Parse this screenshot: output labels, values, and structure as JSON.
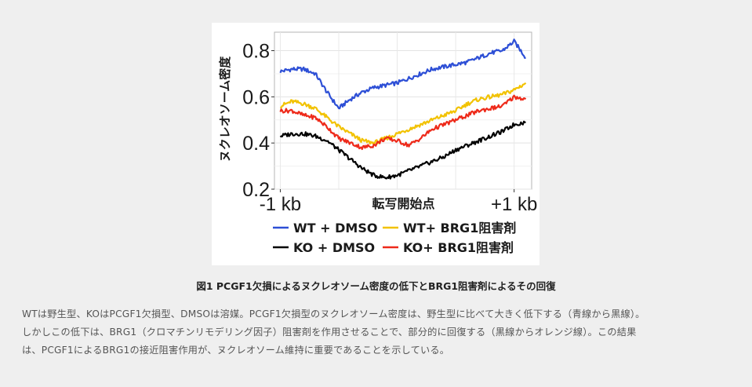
{
  "figure": {
    "caption_title": "図1 PCGF1欠損によるヌクレオソーム密度の低下とBRG1阻害剤によるその回復",
    "caption_body_lines": [
      "WTは野生型、KOはPCGF1欠損型、DMSOは溶媒。PCGF1欠損型のヌクレオソーム密度は、野生型に比べて大きく低下する（青線から黒線）。",
      "しかしこの低下は、BRG1（クロマチンリモデリング因子）阻害剤を作用させることで、部分的に回復する（黒線からオレンジ線）。この結果",
      "は、PCGF1によるBRG1の接近阻害作用が、ヌクレオソーム維持に重要であることを示している。"
    ]
  },
  "chart_data": {
    "type": "line",
    "title": "",
    "xlabel": "転写開始点",
    "ylabel": "ヌクレオソーム密度",
    "x_tick_labels": [
      "-1 kb",
      "+1 kb"
    ],
    "x_ticks": [
      -1,
      1
    ],
    "xlim": [
      -1.05,
      1.15
    ],
    "ylim": [
      0.2,
      0.88
    ],
    "y_ticks": [
      0.2,
      0.4,
      0.6,
      0.8
    ],
    "y_tick_labels": [
      "0.2",
      "0.4",
      "0.6",
      "0.8"
    ],
    "grid": true,
    "legend_position": "bottom",
    "x": [
      -1.0,
      -0.9,
      -0.8,
      -0.7,
      -0.6,
      -0.5,
      -0.4,
      -0.3,
      -0.2,
      -0.1,
      0.0,
      0.1,
      0.2,
      0.3,
      0.4,
      0.5,
      0.6,
      0.7,
      0.8,
      0.9,
      1.0,
      1.1
    ],
    "series": [
      {
        "name": "WT + DMSO",
        "color": "#2d4fd6",
        "values": [
          0.71,
          0.72,
          0.72,
          0.7,
          0.62,
          0.55,
          0.59,
          0.62,
          0.64,
          0.65,
          0.66,
          0.68,
          0.7,
          0.72,
          0.73,
          0.74,
          0.75,
          0.77,
          0.79,
          0.8,
          0.84,
          0.77
        ]
      },
      {
        "name": "WT+ BRG1阻害剤",
        "color": "#f2c200",
        "values": [
          0.56,
          0.58,
          0.57,
          0.55,
          0.51,
          0.47,
          0.44,
          0.41,
          0.4,
          0.42,
          0.44,
          0.46,
          0.48,
          0.5,
          0.52,
          0.54,
          0.57,
          0.59,
          0.6,
          0.61,
          0.63,
          0.66
        ]
      },
      {
        "name": "KO + DMSO",
        "color": "#000000",
        "values": [
          0.43,
          0.44,
          0.44,
          0.43,
          0.41,
          0.37,
          0.33,
          0.29,
          0.26,
          0.25,
          0.26,
          0.28,
          0.3,
          0.32,
          0.34,
          0.37,
          0.39,
          0.41,
          0.43,
          0.45,
          0.48,
          0.49
        ]
      },
      {
        "name": "KO+ BRG1阻害剤",
        "color": "#ee2a1a",
        "values": [
          0.54,
          0.54,
          0.52,
          0.51,
          0.47,
          0.42,
          0.4,
          0.38,
          0.39,
          0.42,
          0.41,
          0.39,
          0.42,
          0.46,
          0.48,
          0.5,
          0.52,
          0.54,
          0.55,
          0.56,
          0.6,
          0.59
        ]
      }
    ]
  }
}
